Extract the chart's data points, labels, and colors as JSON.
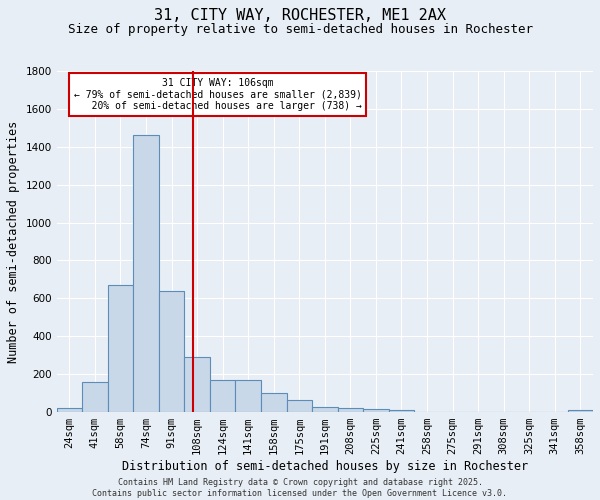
{
  "title": "31, CITY WAY, ROCHESTER, ME1 2AX",
  "subtitle": "Size of property relative to semi-detached houses in Rochester",
  "xlabel": "Distribution of semi-detached houses by size in Rochester",
  "ylabel": "Number of semi-detached properties",
  "categories": [
    "24sqm",
    "41sqm",
    "58sqm",
    "74sqm",
    "91sqm",
    "108sqm",
    "124sqm",
    "141sqm",
    "158sqm",
    "175sqm",
    "191sqm",
    "208sqm",
    "225sqm",
    "241sqm",
    "258sqm",
    "275sqm",
    "291sqm",
    "308sqm",
    "325sqm",
    "341sqm",
    "358sqm"
  ],
  "values": [
    20,
    160,
    670,
    1460,
    640,
    290,
    170,
    170,
    100,
    65,
    25,
    20,
    15,
    12,
    0,
    0,
    0,
    0,
    0,
    0,
    10
  ],
  "bar_color": "#c8d8e8",
  "bar_edge_color": "#5b8db8",
  "bar_edge_width": 0.8,
  "grid_color": "#ffffff",
  "bg_color": "#e8eef5",
  "reference_line_x": 106,
  "reference_line_color": "#cc0000",
  "annotation_text": "31 CITY WAY: 106sqm\n← 79% of semi-detached houses are smaller (2,839)\n   20% of semi-detached houses are larger (738) →",
  "annotation_box_color": "#ffffff",
  "annotation_box_edge": "#cc0000",
  "ylim": [
    0,
    1800
  ],
  "yticks": [
    0,
    200,
    400,
    600,
    800,
    1000,
    1200,
    1400,
    1600,
    1800
  ],
  "footnote": "Contains HM Land Registry data © Crown copyright and database right 2025.\nContains public sector information licensed under the Open Government Licence v3.0.",
  "title_fontsize": 11,
  "subtitle_fontsize": 9,
  "tick_fontsize": 7.5,
  "label_fontsize": 8.5,
  "annotation_fontsize": 7,
  "footnote_fontsize": 6
}
